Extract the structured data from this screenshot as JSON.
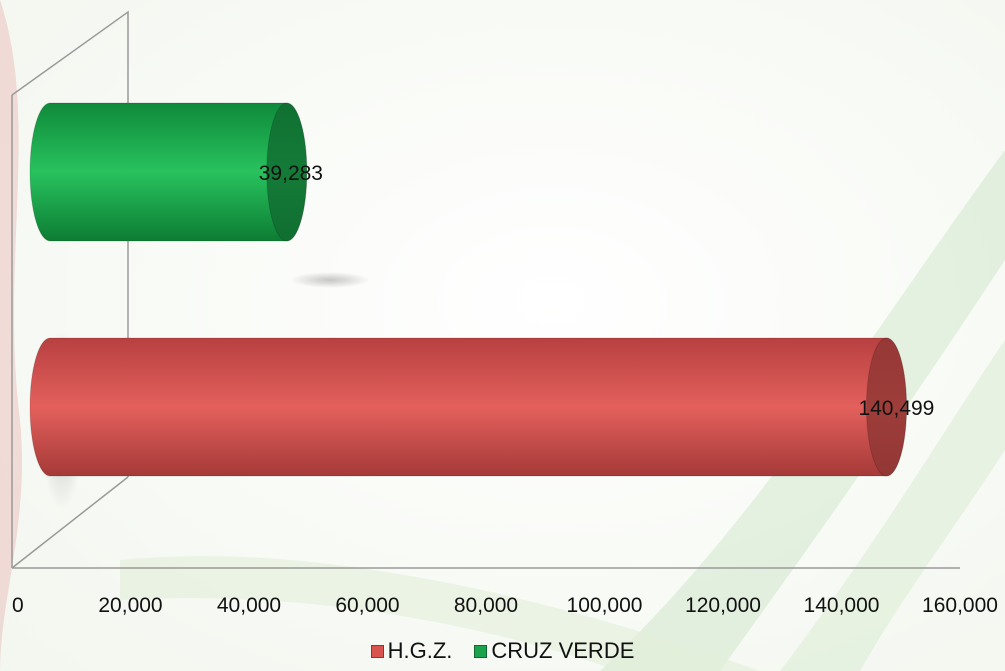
{
  "chart_data": {
    "type": "bar",
    "orientation": "horizontal",
    "style": "3d-cylinder",
    "categories": [
      "",
      ""
    ],
    "series": [
      {
        "name": "H.G.Z.",
        "value": 140499,
        "label": "140,499",
        "color": "#d9534f"
      },
      {
        "name": "CRUZ VERDE",
        "value": 39283,
        "label": "39,283",
        "color": "#1aa34a"
      }
    ],
    "xlim": [
      0,
      160000
    ],
    "x_ticks": [
      "0",
      "20,000",
      "40,000",
      "60,000",
      "80,000",
      "100,000",
      "120,000",
      "140,000",
      "160,000"
    ],
    "legend_position": "bottom-center",
    "grid": false,
    "title": "",
    "xlabel": "",
    "ylabel": ""
  }
}
